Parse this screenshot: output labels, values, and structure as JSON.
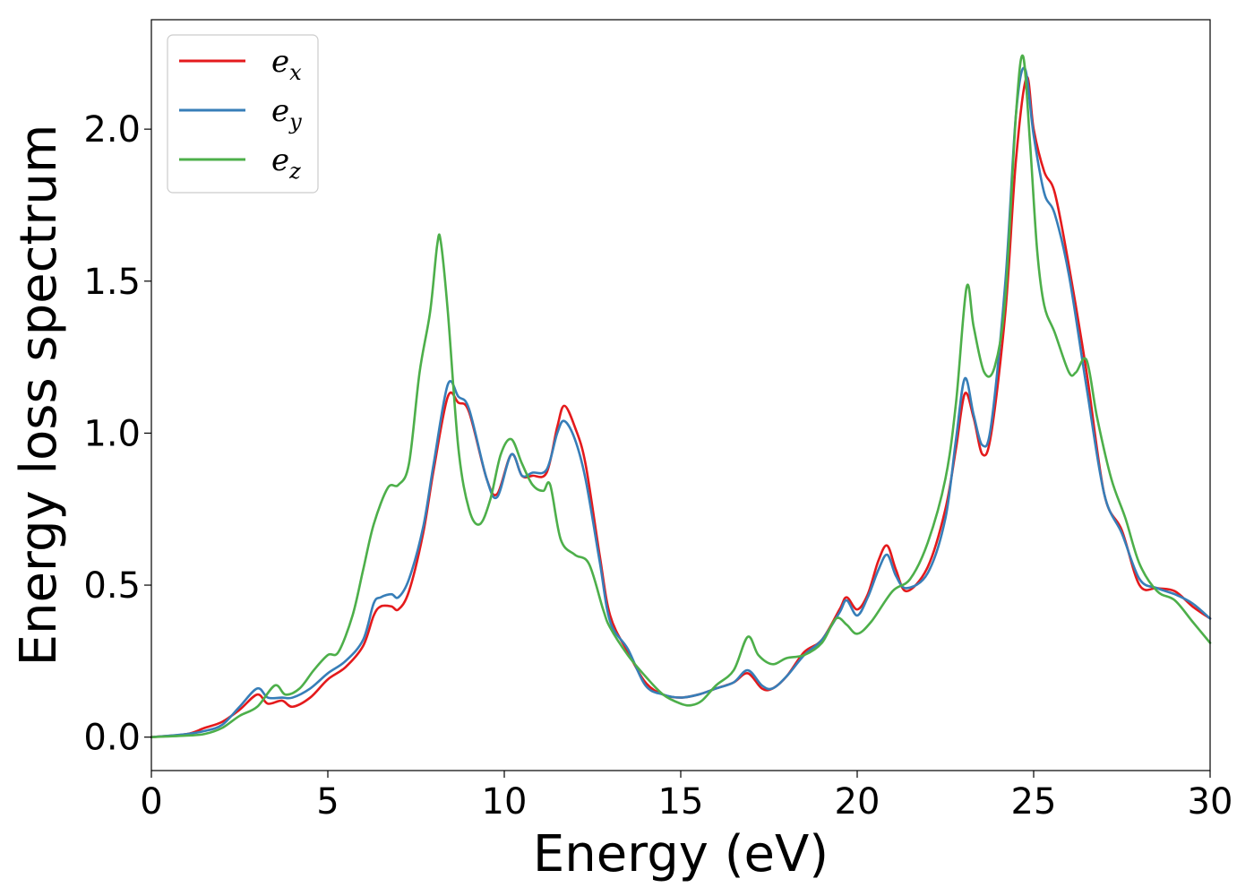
{
  "chart_data": {
    "type": "line",
    "title": "",
    "xlabel": "Energy (eV)",
    "ylabel": "Energy loss spectrum",
    "xlim": [
      0,
      30
    ],
    "ylim": [
      -0.11,
      2.36
    ],
    "xticks": [
      0,
      5,
      10,
      15,
      20,
      25,
      30
    ],
    "xtick_labels": [
      "0",
      "5",
      "10",
      "15",
      "20",
      "25",
      "30"
    ],
    "yticks": [
      0.0,
      0.5,
      1.0,
      1.5,
      2.0
    ],
    "ytick_labels": [
      "0.0",
      "0.5",
      "1.0",
      "1.5",
      "2.0"
    ],
    "grid": false,
    "legend": {
      "position": "top-left"
    },
    "series": [
      {
        "name": "e_x",
        "label_base": "e",
        "label_sub": "x",
        "color": "#e41a1c",
        "x": [
          0,
          1,
          1.5,
          2,
          2.5,
          3,
          3.3,
          3.7,
          4,
          4.5,
          5,
          5.5,
          6,
          6.3,
          6.5,
          6.8,
          7,
          7.3,
          7.7,
          8,
          8.4,
          8.7,
          9,
          9.5,
          9.8,
          10.2,
          10.5,
          10.8,
          11.2,
          11.5,
          11.7,
          12,
          12.3,
          12.7,
          13,
          13.5,
          14,
          14.5,
          15,
          15.5,
          16,
          16.5,
          16.9,
          17.3,
          17.6,
          18,
          18.5,
          19,
          19.5,
          19.7,
          20,
          20.3,
          20.6,
          20.85,
          21.1,
          21.4,
          22,
          22.5,
          22.8,
          23.05,
          23.3,
          23.55,
          23.8,
          24.2,
          24.5,
          24.8,
          25,
          25.3,
          25.6,
          26,
          26.5,
          27,
          27.5,
          28,
          28.5,
          29,
          29.5,
          30
        ],
        "y": [
          0,
          0.01,
          0.03,
          0.05,
          0.09,
          0.14,
          0.11,
          0.12,
          0.1,
          0.13,
          0.19,
          0.23,
          0.3,
          0.4,
          0.43,
          0.43,
          0.42,
          0.48,
          0.67,
          0.88,
          1.12,
          1.1,
          1.07,
          0.85,
          0.8,
          0.93,
          0.86,
          0.86,
          0.87,
          1.02,
          1.09,
          1.02,
          0.9,
          0.6,
          0.4,
          0.28,
          0.18,
          0.14,
          0.13,
          0.14,
          0.16,
          0.18,
          0.21,
          0.16,
          0.16,
          0.2,
          0.28,
          0.32,
          0.42,
          0.46,
          0.42,
          0.47,
          0.58,
          0.63,
          0.55,
          0.48,
          0.56,
          0.75,
          0.95,
          1.13,
          1.05,
          0.93,
          1.0,
          1.4,
          1.9,
          2.17,
          2.0,
          1.86,
          1.79,
          1.55,
          1.2,
          0.8,
          0.68,
          0.5,
          0.49,
          0.48,
          0.43,
          0.39
        ]
      },
      {
        "name": "e_y",
        "label_base": "e",
        "label_sub": "y",
        "color": "#377eb8",
        "x": [
          0,
          1,
          1.5,
          2,
          2.5,
          3,
          3.3,
          3.7,
          4,
          4.5,
          5,
          5.5,
          6,
          6.3,
          6.5,
          6.8,
          7,
          7.3,
          7.7,
          8,
          8.4,
          8.7,
          9,
          9.5,
          9.8,
          10.2,
          10.5,
          10.8,
          11.2,
          11.5,
          11.7,
          12,
          12.3,
          12.7,
          13,
          13.5,
          14,
          14.5,
          15,
          15.5,
          16,
          16.5,
          16.9,
          17.3,
          17.6,
          18,
          18.5,
          19,
          19.5,
          19.7,
          20,
          20.3,
          20.6,
          20.85,
          21.1,
          21.4,
          22,
          22.5,
          22.8,
          23.05,
          23.3,
          23.55,
          23.8,
          24.2,
          24.5,
          24.75,
          25,
          25.3,
          25.6,
          26,
          26.5,
          27,
          27.5,
          28,
          28.5,
          29,
          29.5,
          30
        ],
        "y": [
          0,
          0.01,
          0.02,
          0.04,
          0.1,
          0.16,
          0.13,
          0.13,
          0.13,
          0.16,
          0.21,
          0.25,
          0.32,
          0.44,
          0.46,
          0.47,
          0.46,
          0.52,
          0.69,
          0.9,
          1.16,
          1.12,
          1.08,
          0.85,
          0.79,
          0.93,
          0.86,
          0.87,
          0.88,
          1.0,
          1.04,
          0.98,
          0.85,
          0.58,
          0.38,
          0.29,
          0.17,
          0.14,
          0.13,
          0.14,
          0.16,
          0.18,
          0.22,
          0.17,
          0.16,
          0.2,
          0.27,
          0.32,
          0.41,
          0.45,
          0.4,
          0.46,
          0.55,
          0.6,
          0.53,
          0.49,
          0.54,
          0.72,
          0.98,
          1.18,
          1.06,
          0.96,
          1.03,
          1.5,
          2.05,
          2.2,
          1.98,
          1.79,
          1.72,
          1.52,
          1.15,
          0.8,
          0.67,
          0.52,
          0.49,
          0.47,
          0.44,
          0.39
        ]
      },
      {
        "name": "e_z",
        "label_base": "e",
        "label_sub": "z",
        "color": "#4daf4a",
        "x": [
          0,
          1,
          1.5,
          2,
          2.5,
          3,
          3.5,
          3.8,
          4.2,
          4.6,
          5,
          5.3,
          5.7,
          6,
          6.3,
          6.7,
          7,
          7.3,
          7.6,
          7.9,
          8.1,
          8.2,
          8.4,
          8.7,
          9,
          9.3,
          9.6,
          9.9,
          10.2,
          10.5,
          10.8,
          11.1,
          11.3,
          11.6,
          12,
          12.4,
          12.8,
          13,
          13.5,
          14,
          14.5,
          15,
          15.3,
          15.6,
          16,
          16.5,
          16.9,
          17.2,
          17.6,
          18,
          18.5,
          19,
          19.4,
          19.7,
          20,
          20.4,
          21,
          21.5,
          22,
          22.5,
          22.8,
          23.1,
          23.3,
          23.6,
          23.9,
          24.2,
          24.5,
          24.7,
          24.9,
          25.1,
          25.3,
          25.6,
          26,
          26.2,
          26.5,
          26.8,
          27.2,
          27.6,
          28,
          28.5,
          29,
          29.5,
          30
        ],
        "y": [
          0,
          0.005,
          0.01,
          0.03,
          0.07,
          0.1,
          0.17,
          0.14,
          0.16,
          0.22,
          0.27,
          0.28,
          0.4,
          0.55,
          0.7,
          0.82,
          0.83,
          0.9,
          1.2,
          1.4,
          1.62,
          1.63,
          1.4,
          0.95,
          0.75,
          0.7,
          0.78,
          0.93,
          0.98,
          0.9,
          0.83,
          0.81,
          0.83,
          0.65,
          0.6,
          0.57,
          0.42,
          0.36,
          0.27,
          0.2,
          0.14,
          0.11,
          0.105,
          0.12,
          0.17,
          0.22,
          0.33,
          0.27,
          0.24,
          0.26,
          0.27,
          0.31,
          0.39,
          0.37,
          0.34,
          0.38,
          0.48,
          0.52,
          0.64,
          0.85,
          1.1,
          1.48,
          1.35,
          1.2,
          1.22,
          1.45,
          2.05,
          2.24,
          1.95,
          1.6,
          1.42,
          1.33,
          1.2,
          1.2,
          1.24,
          1.05,
          0.85,
          0.72,
          0.57,
          0.48,
          0.45,
          0.38,
          0.31
        ]
      }
    ]
  }
}
